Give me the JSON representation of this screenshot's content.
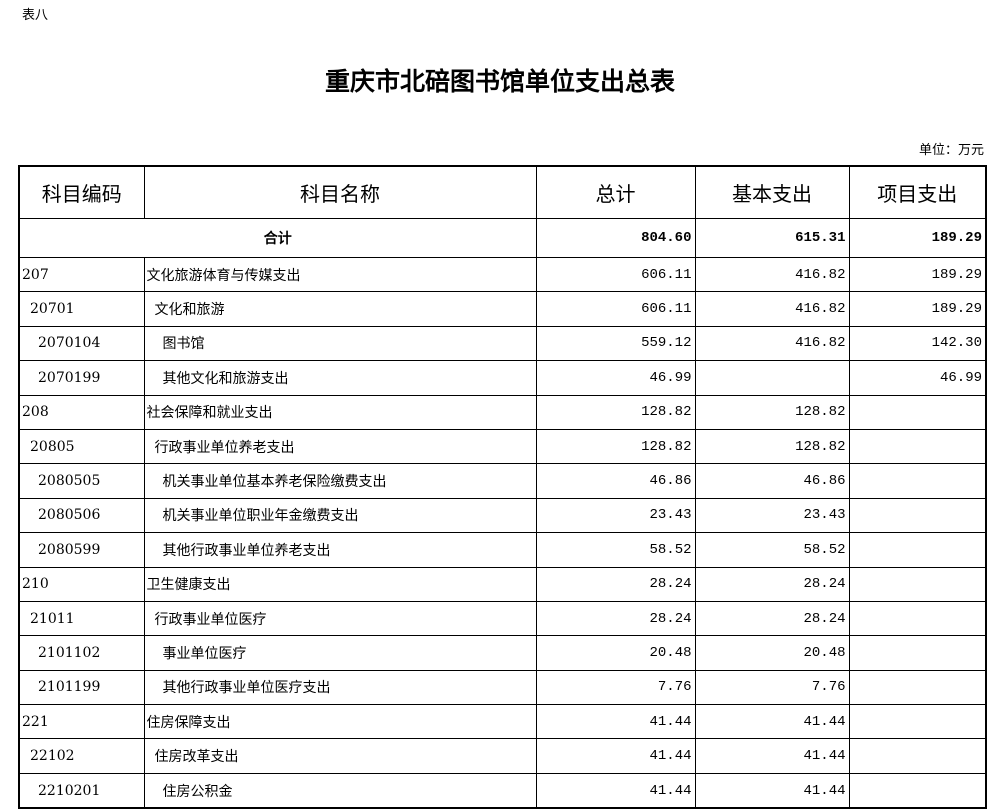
{
  "label": "表八",
  "title": "重庆市北碚图书馆单位支出总表",
  "unit": "单位：万元",
  "headers": [
    "科目编码",
    "科目名称",
    "总计",
    "基本支出",
    "项目支出"
  ],
  "total": {
    "label": "合计",
    "total": "804.60",
    "basic": "615.31",
    "project": "189.29"
  },
  "rows": [
    {
      "level": 0,
      "code": "207",
      "name": "文化旅游体育与传媒支出",
      "total": "606.11",
      "basic": "416.82",
      "project": "189.29"
    },
    {
      "level": 1,
      "code": "20701",
      "name": "文化和旅游",
      "total": "606.11",
      "basic": "416.82",
      "project": "189.29"
    },
    {
      "level": 2,
      "code": "2070104",
      "name": "图书馆",
      "total": "559.12",
      "basic": "416.82",
      "project": "142.30"
    },
    {
      "level": 2,
      "code": "2070199",
      "name": "其他文化和旅游支出",
      "total": "46.99",
      "basic": "",
      "project": "46.99"
    },
    {
      "level": 0,
      "code": "208",
      "name": "社会保障和就业支出",
      "total": "128.82",
      "basic": "128.82",
      "project": ""
    },
    {
      "level": 1,
      "code": "20805",
      "name": "行政事业单位养老支出",
      "total": "128.82",
      "basic": "128.82",
      "project": ""
    },
    {
      "level": 2,
      "code": "2080505",
      "name": "机关事业单位基本养老保险缴费支出",
      "total": "46.86",
      "basic": "46.86",
      "project": ""
    },
    {
      "level": 2,
      "code": "2080506",
      "name": "机关事业单位职业年金缴费支出",
      "total": "23.43",
      "basic": "23.43",
      "project": ""
    },
    {
      "level": 2,
      "code": "2080599",
      "name": "其他行政事业单位养老支出",
      "total": "58.52",
      "basic": "58.52",
      "project": ""
    },
    {
      "level": 0,
      "code": "210",
      "name": "卫生健康支出",
      "total": "28.24",
      "basic": "28.24",
      "project": ""
    },
    {
      "level": 1,
      "code": "21011",
      "name": "行政事业单位医疗",
      "total": "28.24",
      "basic": "28.24",
      "project": ""
    },
    {
      "level": 2,
      "code": "2101102",
      "name": "事业单位医疗",
      "total": "20.48",
      "basic": "20.48",
      "project": ""
    },
    {
      "level": 2,
      "code": "2101199",
      "name": "其他行政事业单位医疗支出",
      "total": "7.76",
      "basic": "7.76",
      "project": ""
    },
    {
      "level": 0,
      "code": "221",
      "name": "住房保障支出",
      "total": "41.44",
      "basic": "41.44",
      "project": ""
    },
    {
      "level": 1,
      "code": "22102",
      "name": "住房改革支出",
      "total": "41.44",
      "basic": "41.44",
      "project": ""
    },
    {
      "level": 2,
      "code": "2210201",
      "name": "住房公积金",
      "total": "41.44",
      "basic": "41.44",
      "project": ""
    }
  ]
}
